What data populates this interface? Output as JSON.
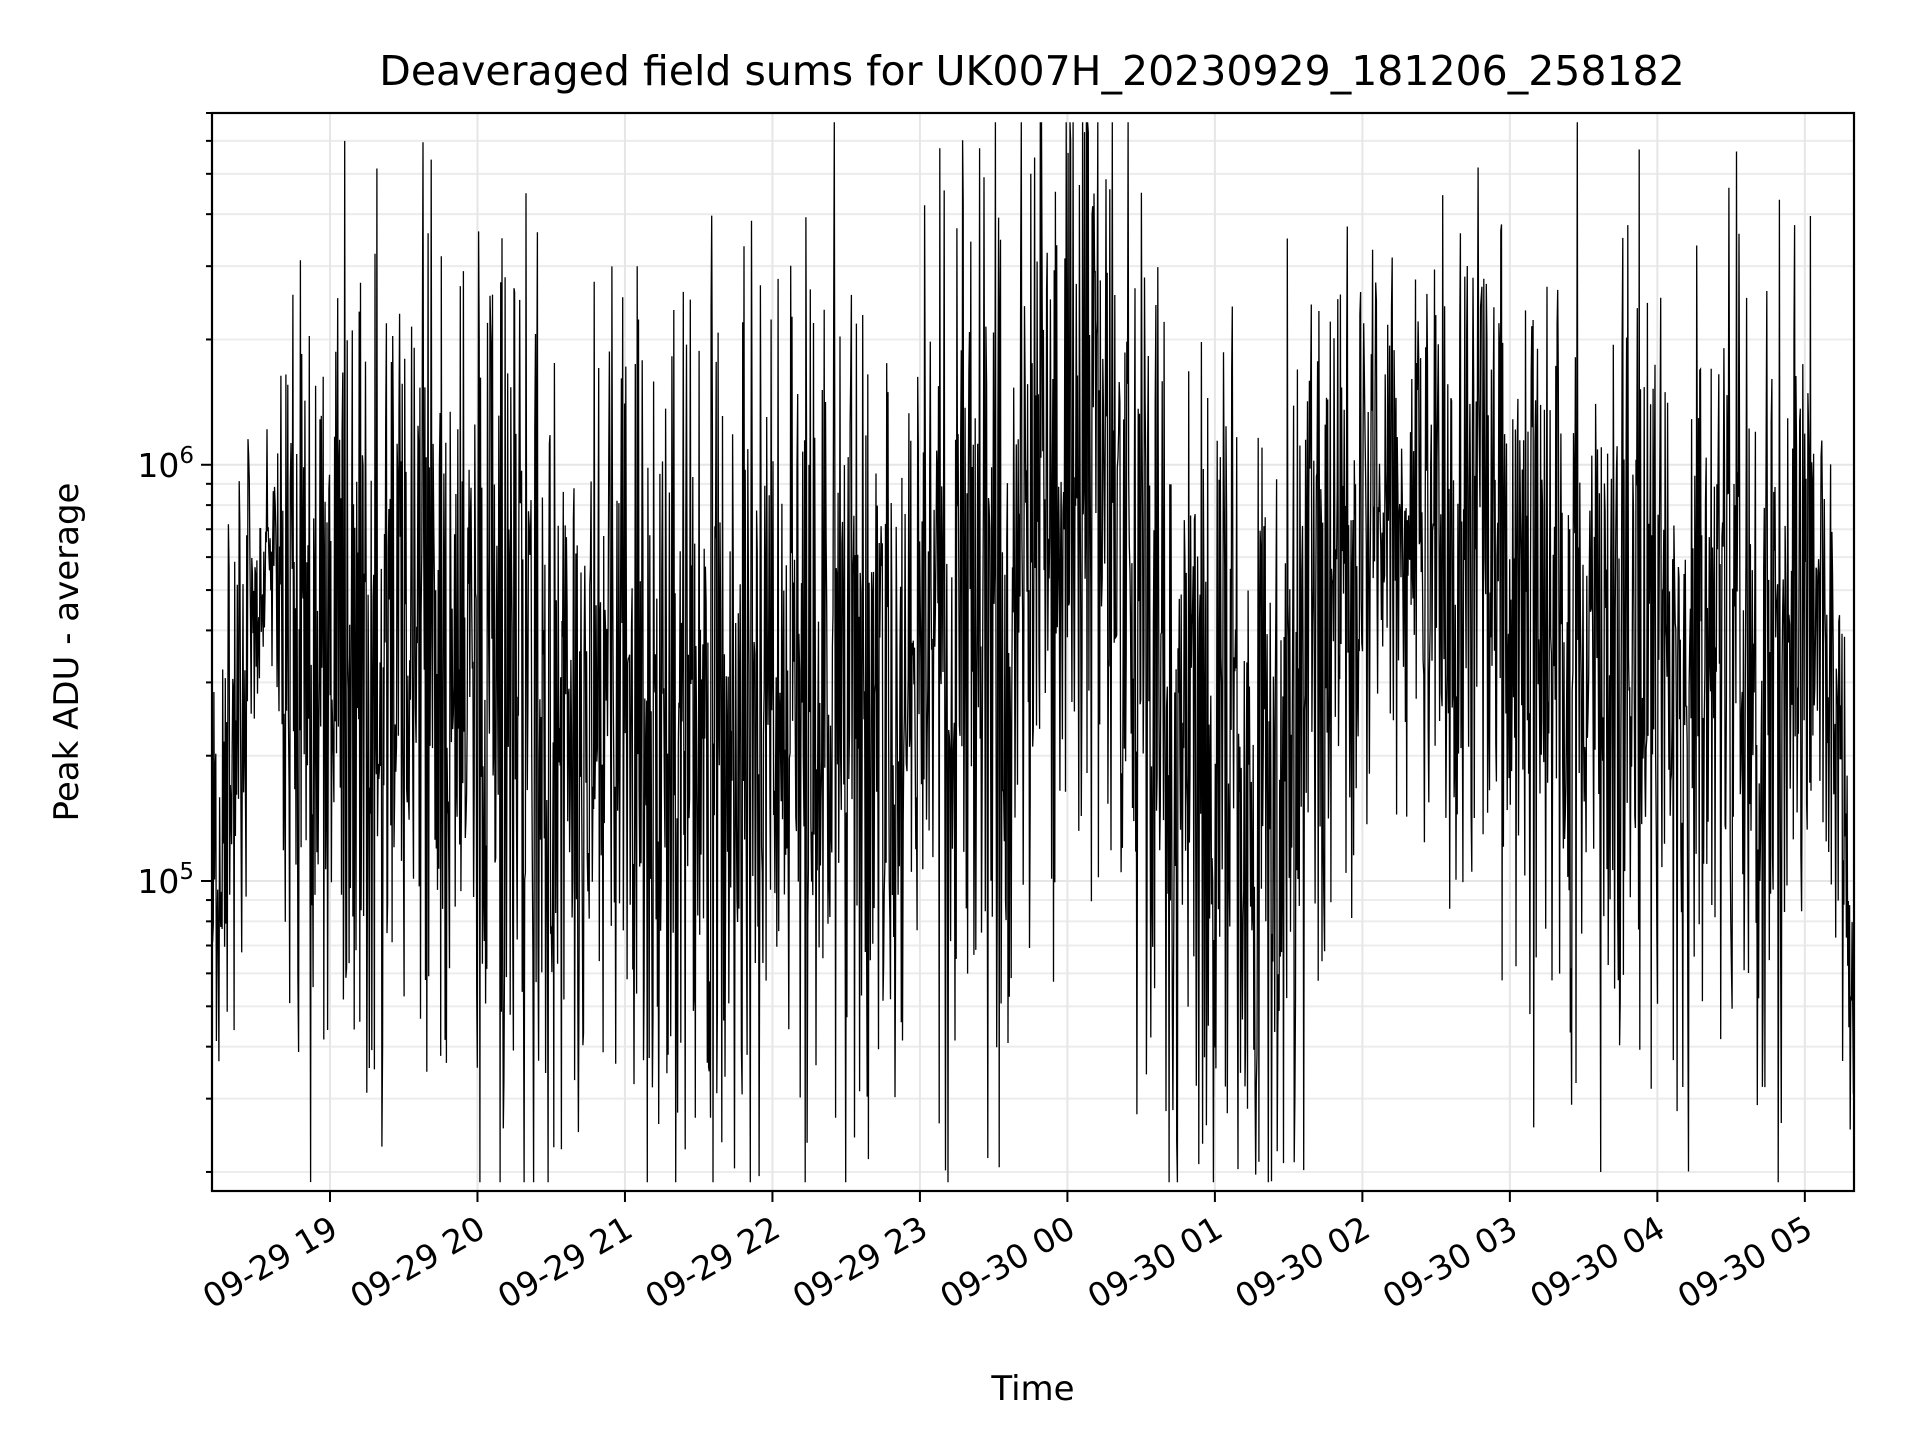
{
  "chart_data": {
    "type": "line",
    "title": "Deaveraged field sums for UK007H_20230929_181206_258182",
    "xlabel": "Time",
    "ylabel": "Peak ADU - average",
    "yscale": "log",
    "ylim": [
      18000,
      7000000
    ],
    "xlim": [
      "2023-09-29 18:12",
      "2023-09-30 05:20"
    ],
    "x_ticks": [
      {
        "label": "09-29 19",
        "time": "2023-09-29 19:00"
      },
      {
        "label": "09-29 20",
        "time": "2023-09-29 20:00"
      },
      {
        "label": "09-29 21",
        "time": "2023-09-29 21:00"
      },
      {
        "label": "09-29 22",
        "time": "2023-09-29 22:00"
      },
      {
        "label": "09-29 23",
        "time": "2023-09-29 23:00"
      },
      {
        "label": "09-30 00",
        "time": "2023-09-30 00:00"
      },
      {
        "label": "09-30 01",
        "time": "2023-09-30 01:00"
      },
      {
        "label": "09-30 02",
        "time": "2023-09-30 02:00"
      },
      {
        "label": "09-30 03",
        "time": "2023-09-30 03:00"
      },
      {
        "label": "09-30 04",
        "time": "2023-09-30 04:00"
      },
      {
        "label": "09-30 05",
        "time": "2023-09-30 05:00"
      }
    ],
    "y_ticks": [
      {
        "base": "10",
        "exp": "5",
        "value": 100000
      },
      {
        "base": "10",
        "exp": "6",
        "value": 1000000
      }
    ],
    "grid": true,
    "series_color": "#000000",
    "trend": {
      "time": [
        "2023-09-29 18:12",
        "2023-09-29 18:25",
        "2023-09-29 18:35",
        "2023-09-29 18:45",
        "2023-09-29 19:00",
        "2023-09-29 19:30",
        "2023-09-29 20:00",
        "2023-09-29 20:30",
        "2023-09-29 21:00",
        "2023-09-29 21:30",
        "2023-09-29 22:00",
        "2023-09-29 22:30",
        "2023-09-29 23:00",
        "2023-09-29 23:30",
        "2023-09-29 23:50",
        "2023-09-30 00:10",
        "2023-09-30 00:25",
        "2023-09-30 00:45",
        "2023-09-30 01:10",
        "2023-09-30 01:30",
        "2023-09-30 01:45",
        "2023-09-30 02:15",
        "2023-09-30 02:45",
        "2023-09-30 03:10",
        "2023-09-30 03:30",
        "2023-09-30 04:00",
        "2023-09-30 04:30",
        "2023-09-30 04:55",
        "2023-09-30 05:05",
        "2023-09-30 05:15",
        "2023-09-30 05:20"
      ],
      "center": [
        100000,
        300000,
        700000,
        450000,
        350000,
        300000,
        260000,
        240000,
        230000,
        230000,
        240000,
        250000,
        280000,
        360000,
        700000,
        900000,
        500000,
        180000,
        150000,
        180000,
        500000,
        650000,
        550000,
        350000,
        300000,
        320000,
        320000,
        300000,
        500000,
        150000,
        60000
      ],
      "spread": [
        0.25,
        0.3,
        0.1,
        0.45,
        0.5,
        0.5,
        0.5,
        0.5,
        0.5,
        0.5,
        0.5,
        0.5,
        0.5,
        0.55,
        0.55,
        0.55,
        0.5,
        0.45,
        0.5,
        0.5,
        0.4,
        0.35,
        0.4,
        0.45,
        0.45,
        0.45,
        0.45,
        0.45,
        0.3,
        0.3,
        0.25
      ]
    },
    "peaks": [
      {
        "time": "2023-09-29 19:06",
        "value": 6000000
      },
      {
        "time": "2023-09-29 18:48",
        "value": 3100000
      },
      {
        "time": "2023-09-29 19:40",
        "value": 3600000
      },
      {
        "time": "2023-09-29 20:10",
        "value": 3500000
      },
      {
        "time": "2023-09-29 20:15",
        "value": 2600000
      },
      {
        "time": "2023-09-29 21:05",
        "value": 3000000
      },
      {
        "time": "2023-09-29 21:35",
        "value": 2400000
      },
      {
        "time": "2023-09-29 21:55",
        "value": 2700000
      },
      {
        "time": "2023-09-29 22:25",
        "value": 2300000
      },
      {
        "time": "2023-09-29 23:02",
        "value": 4200000
      },
      {
        "time": "2023-09-29 23:15",
        "value": 3700000
      },
      {
        "time": "2023-09-29 23:45",
        "value": 5000000
      },
      {
        "time": "2023-09-30 00:05",
        "value": 4700000
      },
      {
        "time": "2023-09-30 00:10",
        "value": 4000000
      },
      {
        "time": "2023-09-30 01:07",
        "value": 2400000
      },
      {
        "time": "2023-09-30 01:50",
        "value": 2500000
      },
      {
        "time": "2023-09-30 02:48",
        "value": 2400000
      },
      {
        "time": "2023-09-30 03:35",
        "value": 1400000
      },
      {
        "time": "2023-09-30 04:40",
        "value": 1200000
      }
    ],
    "dips": [
      {
        "time": "2023-09-29 19:15",
        "value": 31000
      },
      {
        "time": "2023-09-29 19:45",
        "value": 38000
      },
      {
        "time": "2023-09-29 20:25",
        "value": 37000
      },
      {
        "time": "2023-09-30 01:23",
        "value": 19000
      },
      {
        "time": "2023-09-30 01:28",
        "value": 21000
      },
      {
        "time": "2023-09-30 00:40",
        "value": 28000
      },
      {
        "time": "2023-09-30 03:37",
        "value": 20000
      },
      {
        "time": "2023-09-30 03:25",
        "value": 29000
      },
      {
        "time": "2023-09-30 04:08",
        "value": 28000
      },
      {
        "time": "2023-09-30 05:20",
        "value": 30000
      }
    ]
  }
}
